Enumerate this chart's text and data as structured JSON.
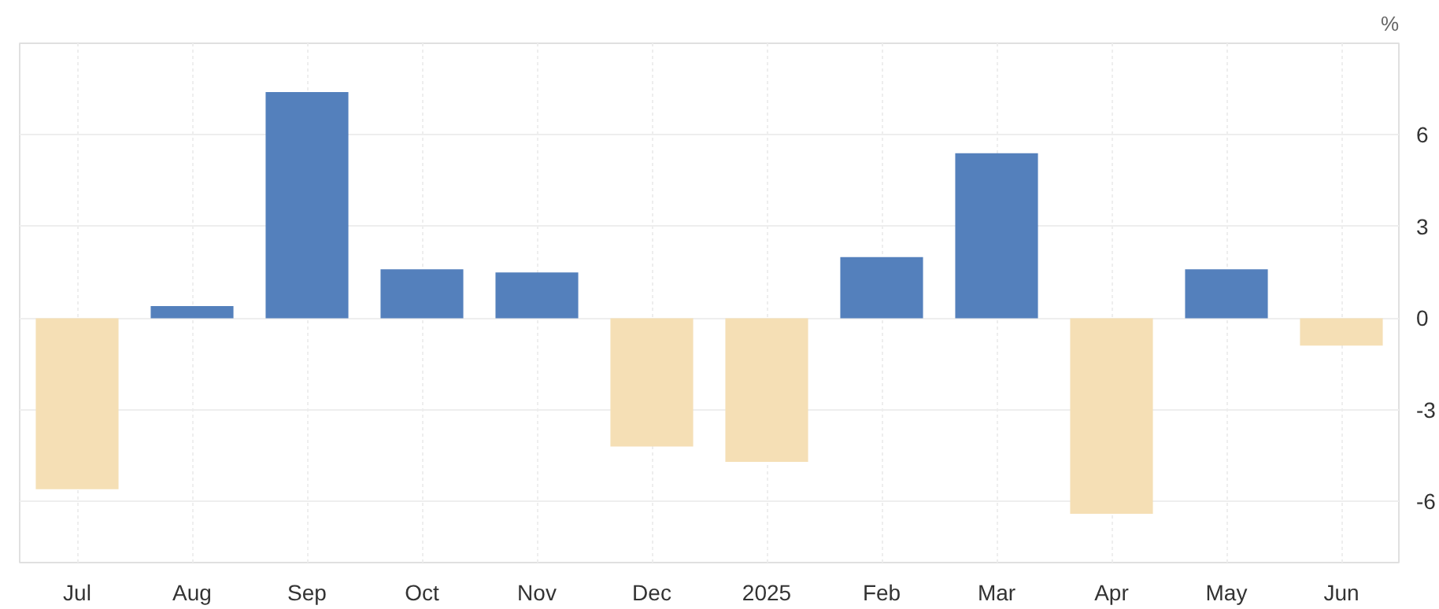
{
  "chart_data": {
    "type": "bar",
    "ylabel": "%",
    "categories": [
      "Jul",
      "Aug",
      "Sep",
      "Oct",
      "Nov",
      "Dec",
      "2025",
      "Feb",
      "Mar",
      "Apr",
      "May",
      "Jun"
    ],
    "values": [
      -5.6,
      0.4,
      7.4,
      1.6,
      1.5,
      -4.2,
      -4.7,
      2.0,
      5.4,
      -6.4,
      1.6,
      -0.9
    ],
    "colors": [
      "#f5dfb5",
      "#5480bc",
      "#5480bc",
      "#5480bc",
      "#5480bc",
      "#f5dfb5",
      "#f5dfb5",
      "#5480bc",
      "#5480bc",
      "#f5dfb5",
      "#5480bc",
      "#f5dfb5"
    ],
    "ylim": [
      -8,
      9
    ],
    "yticks": [
      -6,
      -3,
      0,
      3,
      6
    ],
    "grid": true
  }
}
